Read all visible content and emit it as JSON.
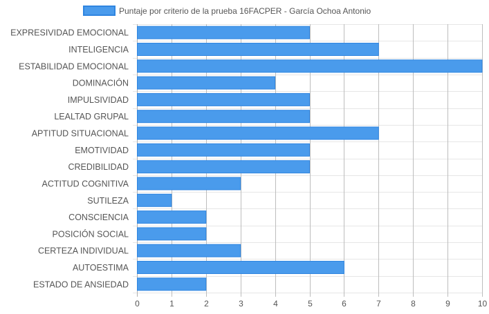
{
  "chart_data": {
    "type": "bar",
    "orientation": "horizontal",
    "legend": {
      "position": "top",
      "entries": [
        "Puntaje por criterio de la prueba 16FACPER - García Ochoa Antonio"
      ]
    },
    "series": [
      {
        "name": "Puntaje por criterio de la prueba 16FACPER - García Ochoa Antonio",
        "color": "#4a9bec",
        "border_color": "#2f85e0"
      }
    ],
    "categories": [
      "EXPRESIVIDAD EMOCIONAL",
      "INTELIGENCIA",
      "ESTABILIDAD EMOCIONAL",
      "DOMINACIÓN",
      "IMPULSIVIDAD",
      "LEALTAD GRUPAL",
      "APTITUD SITUACIONAL",
      "EMOTIVIDAD",
      "CREDIBILIDAD",
      "ACTITUD COGNITIVA",
      "SUTILEZA",
      "CONSCIENCIA",
      "POSICIÓN SOCIAL",
      "CERTEZA INDIVIDUAL",
      "AUTOESTIMA",
      "ESTADO DE ANSIEDAD"
    ],
    "values": [
      5,
      7,
      10,
      4,
      5,
      5,
      7,
      5,
      5,
      3,
      1,
      2,
      2,
      3,
      6,
      2
    ],
    "xlim": [
      0,
      10
    ],
    "x_ticks": [
      "0",
      "1",
      "2",
      "3",
      "4",
      "5",
      "6",
      "7",
      "8",
      "9",
      "10"
    ],
    "grid": true
  }
}
